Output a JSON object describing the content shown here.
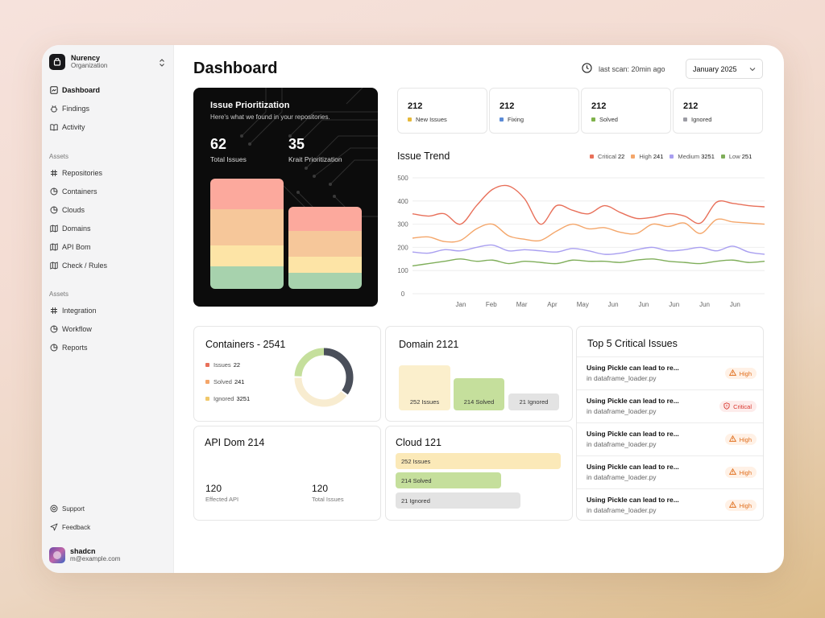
{
  "sidebar": {
    "org_name": "Nurency",
    "org_sub": "Organization",
    "nav": [
      {
        "label": "Dashboard"
      },
      {
        "label": "Findings"
      },
      {
        "label": "Activity"
      }
    ],
    "section_1": "Assets",
    "assets": [
      {
        "label": "Repositories"
      },
      {
        "label": "Containers"
      },
      {
        "label": "Clouds"
      },
      {
        "label": "Domains"
      },
      {
        "label": "API Bom"
      },
      {
        "label": "Check / Rules"
      }
    ],
    "section_2": "Assets",
    "assets2": [
      {
        "label": "Integration"
      },
      {
        "label": "Workflow"
      },
      {
        "label": "Reports"
      }
    ],
    "support": "Support",
    "feedback": "Feedback",
    "user_name": "shadcn",
    "user_email": "m@example.com"
  },
  "header": {
    "title": "Dashboard",
    "scan": "last scan: 20min ago",
    "month": "January 2025"
  },
  "prioritization": {
    "title": "Issue Prioritization",
    "subtitle": "Here's what we found in your repositories.",
    "total_value": "62",
    "total_label": "Total Issues",
    "krait_value": "35",
    "krait_label": "Krait Prioritization"
  },
  "stats": [
    {
      "value": "212",
      "label": "New Issues",
      "color": "#e6b93a"
    },
    {
      "value": "212",
      "label": "Fixing",
      "color": "#5b8bd6"
    },
    {
      "value": "212",
      "label": "Solved",
      "color": "#7fb24b"
    },
    {
      "value": "212",
      "label": "Ignored",
      "color": "#9c9ca4"
    }
  ],
  "trend": {
    "title": "Issue Trend",
    "legend": [
      {
        "name": "Critical",
        "value": "22",
        "color": "#e8705a"
      },
      {
        "name": "High",
        "value": "241",
        "color": "#f4a66a"
      },
      {
        "name": "Medium",
        "value": "3251",
        "color": "#a99ff0"
      },
      {
        "name": "Low",
        "value": "251",
        "color": "#7fae5a"
      }
    ]
  },
  "chart_data": {
    "type": "line",
    "ylim": [
      0,
      500
    ],
    "yticks": [
      "500",
      "400",
      "300",
      "200",
      "100",
      "0"
    ],
    "x_labels": [
      "Jan",
      "Feb",
      "Mar",
      "Apr",
      "May",
      "Jun",
      "Jun",
      "Jun",
      "Jun",
      "Jun",
      "Jun",
      "Jun"
    ],
    "series": [
      {
        "name": "Critical",
        "color": "#e8705a",
        "values": [
          345,
          335,
          345,
          300,
          380,
          450,
          465,
          410,
          300,
          380,
          360,
          345,
          380,
          350,
          325,
          330,
          345,
          335,
          305,
          395,
          390,
          380,
          375
        ]
      },
      {
        "name": "High",
        "color": "#f4a66a",
        "values": [
          240,
          245,
          225,
          230,
          280,
          300,
          250,
          235,
          230,
          270,
          300,
          280,
          285,
          265,
          260,
          300,
          290,
          305,
          260,
          320,
          310,
          305,
          300
        ]
      },
      {
        "name": "Medium",
        "color": "#a99ff0",
        "values": [
          180,
          175,
          190,
          185,
          200,
          210,
          185,
          190,
          185,
          180,
          195,
          185,
          170,
          175,
          190,
          200,
          185,
          190,
          200,
          185,
          205,
          180,
          170
        ]
      },
      {
        "name": "Low",
        "color": "#7fae5a",
        "values": [
          120,
          130,
          140,
          150,
          140,
          145,
          130,
          140,
          135,
          130,
          145,
          140,
          140,
          135,
          145,
          150,
          140,
          135,
          130,
          140,
          145,
          135,
          140
        ]
      }
    ]
  },
  "containers": {
    "title": "Containers - 2541",
    "legend": [
      {
        "name": "Issues",
        "value": "22",
        "color": "#e8705a"
      },
      {
        "name": "Solved",
        "value": "241",
        "color": "#f4a66a"
      },
      {
        "name": "Ignored",
        "value": "3251",
        "color": "#f0c86a"
      }
    ]
  },
  "domain": {
    "title": "Domain 2121",
    "bars": [
      {
        "label": "252 Issues",
        "color": "#fbefcc",
        "value": 252
      },
      {
        "label": "214 Solved",
        "color": "#c5df9c",
        "value": 214
      },
      {
        "label": "21 Ignored",
        "color": "#e3e3e3",
        "value": 21
      }
    ]
  },
  "api": {
    "title": "API Dom 214",
    "effected_value": "120",
    "effected_label": "Effected API",
    "total_value": "120",
    "total_label": "Total Issues"
  },
  "cloud": {
    "title": "Cloud 121",
    "bars": [
      {
        "label": "252 Issues",
        "color": "#fbe9b8",
        "value": 252
      },
      {
        "label": "214 Solved",
        "color": "#c5df9c",
        "value": 214
      },
      {
        "label": "21 Ignored",
        "color": "#e3e3e3",
        "value": 21
      }
    ]
  },
  "top5": {
    "title": "Top 5 Critical  Issues",
    "issues": [
      {
        "title": "Using Pickle can lead to re...",
        "file": "in dataframe_loader.py",
        "severity": "High"
      },
      {
        "title": "Using Pickle can lead to re...",
        "file": "in dataframe_loader.py",
        "severity": "Critical"
      },
      {
        "title": "Using Pickle can lead to re...",
        "file": "in dataframe_loader.py",
        "severity": "High"
      },
      {
        "title": "Using Pickle can lead to re...",
        "file": "in dataframe_loader.py",
        "severity": "High"
      },
      {
        "title": "Using Pickle can lead to re...",
        "file": "in dataframe_loader.py",
        "severity": "High"
      }
    ]
  }
}
